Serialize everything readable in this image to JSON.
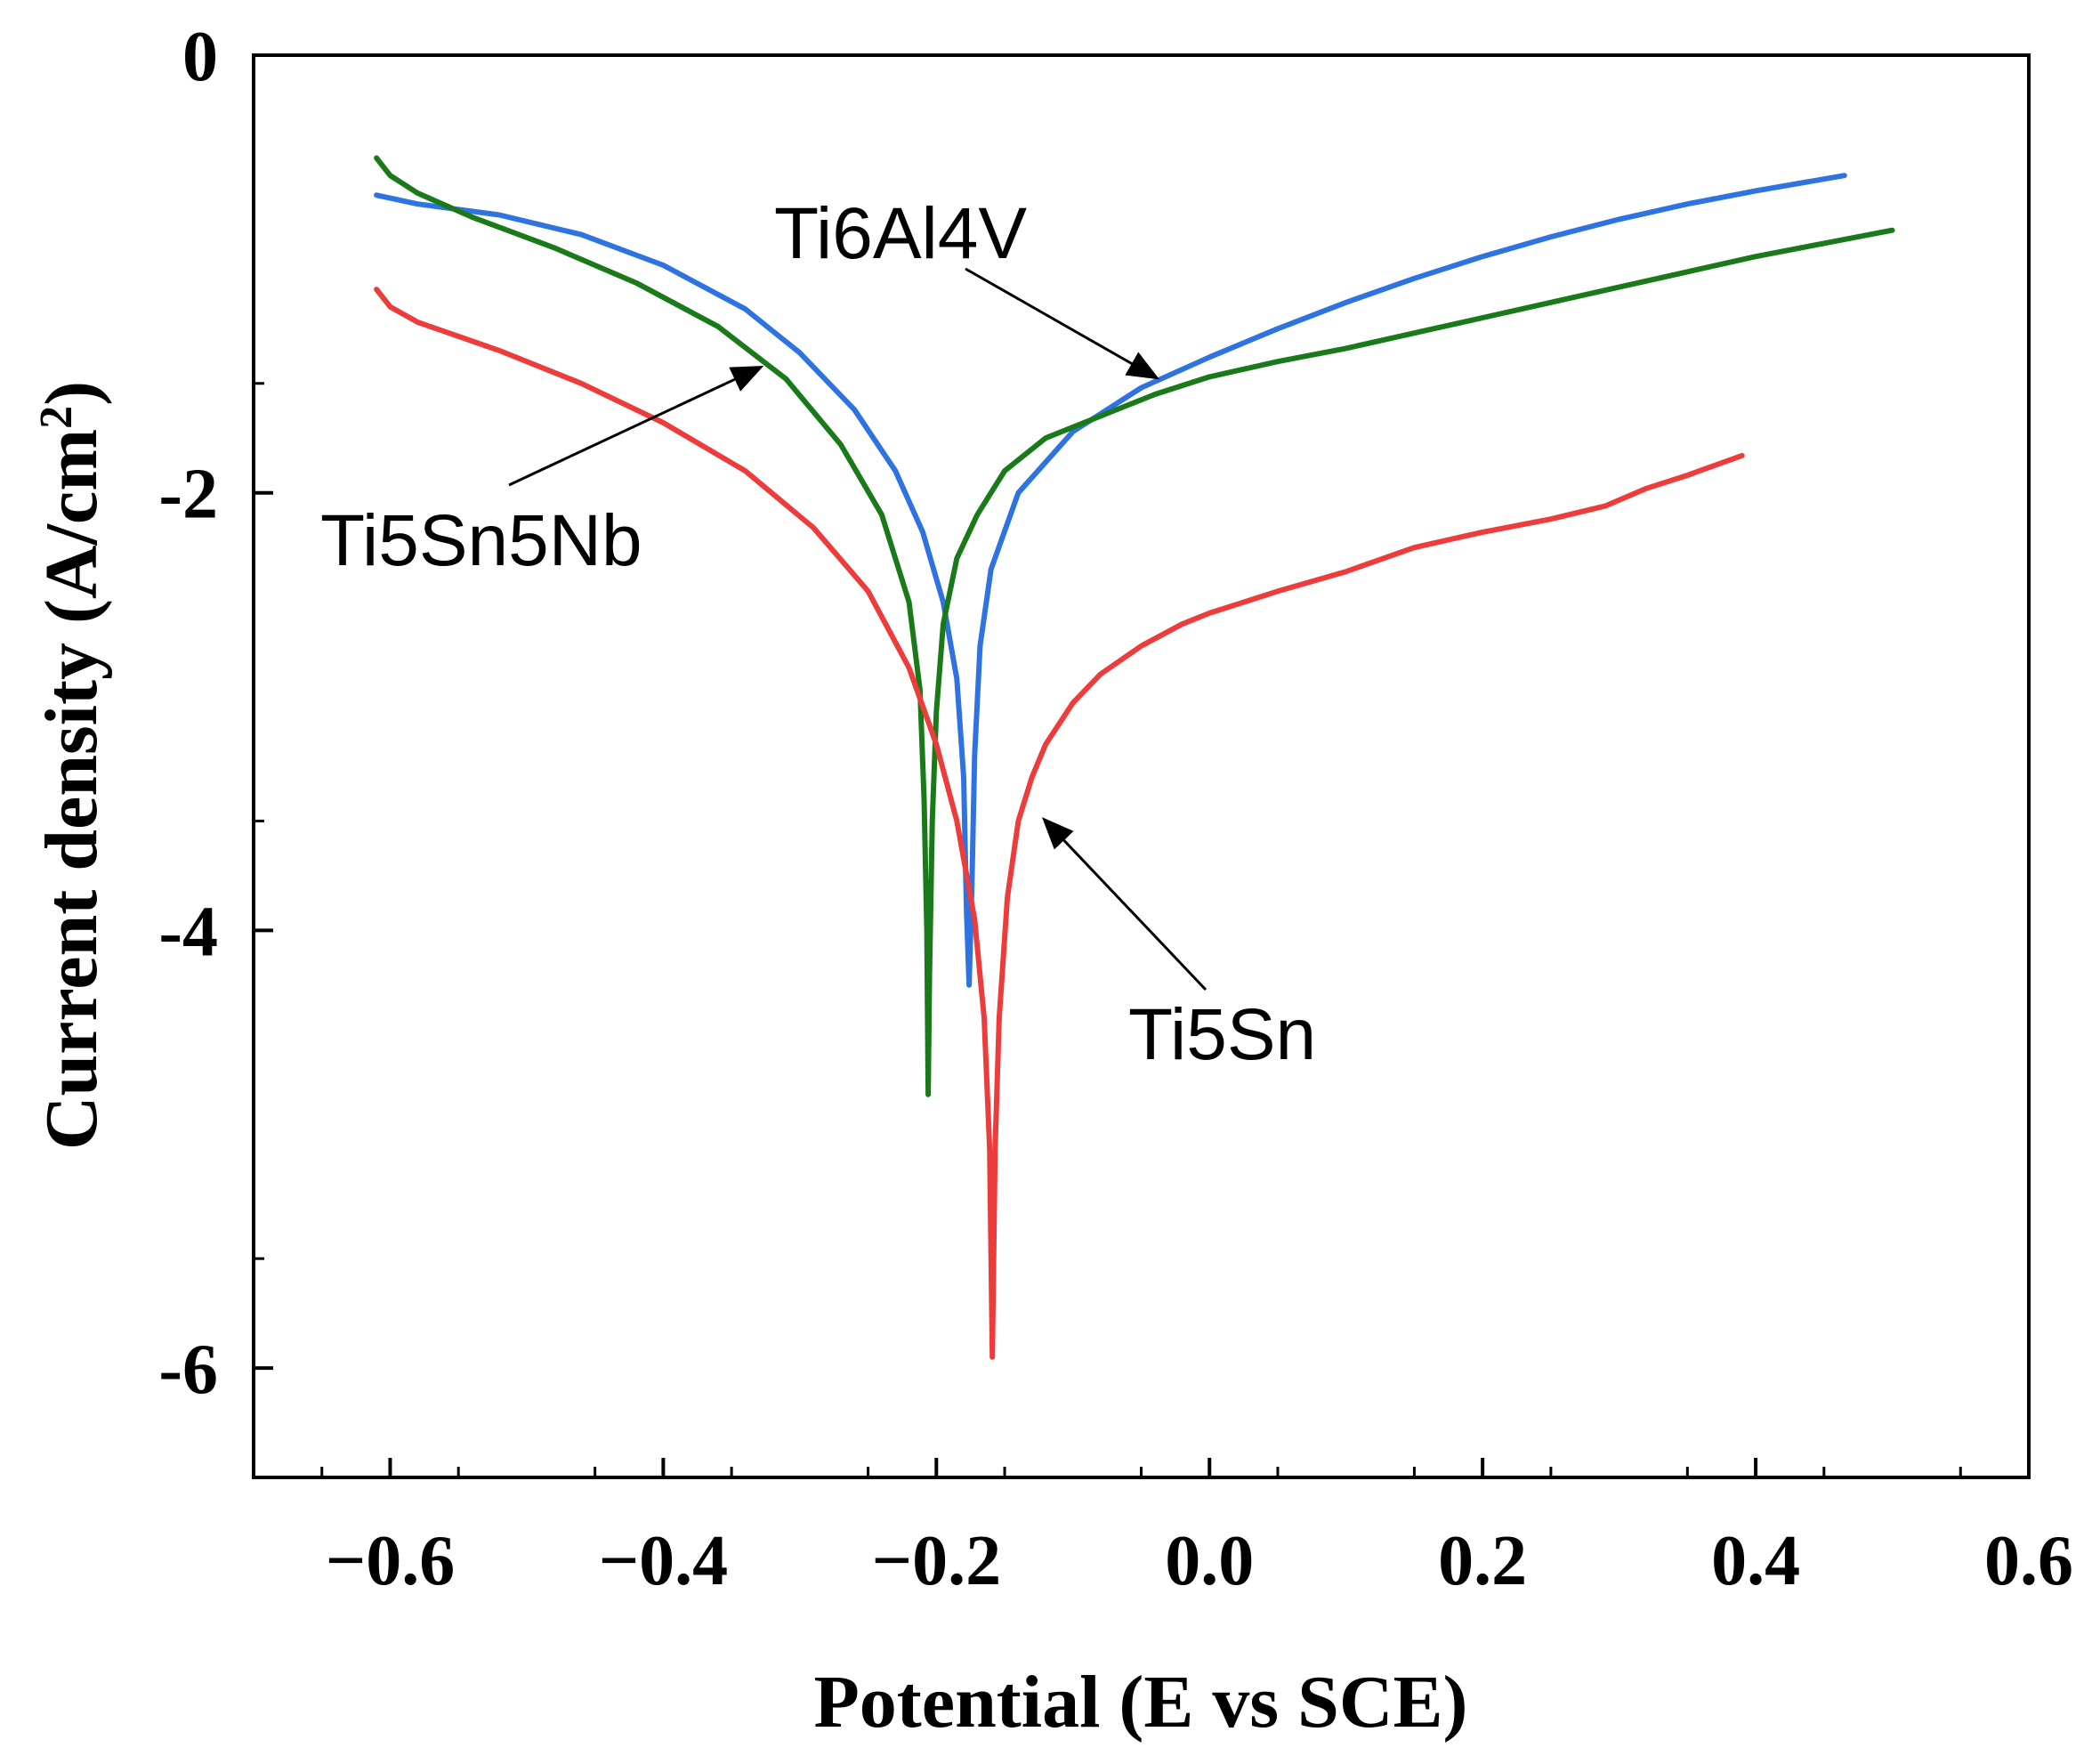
{
  "chart_data": {
    "type": "line",
    "title": "",
    "xlabel": "Potential (E vs SCE)",
    "ylabel_main": "Current density (A/cm",
    "ylabel_sup": "2",
    "ylabel_close": ")",
    "xlim": [
      -0.7,
      0.6
    ],
    "ylim": [
      -6.5,
      0
    ],
    "xticks": [
      -0.6,
      -0.4,
      -0.2,
      0.0,
      0.2,
      0.4,
      0.6
    ],
    "xtick_labels": [
      "−0.6",
      "−0.4",
      "−0.2",
      "0.0",
      "0.2",
      "0.4",
      "0.6"
    ],
    "yticks": [
      0,
      -2,
      -4,
      -6
    ],
    "ytick_labels": [
      "0",
      "-2",
      "-4",
      "-6"
    ],
    "grid": false,
    "series": [
      {
        "name": "Ti6Al4V",
        "color": "#2f73e0",
        "points": [
          [
            -0.61,
            -0.64
          ],
          [
            -0.58,
            -0.68
          ],
          [
            -0.52,
            -0.73
          ],
          [
            -0.46,
            -0.82
          ],
          [
            -0.4,
            -0.96
          ],
          [
            -0.34,
            -1.16
          ],
          [
            -0.3,
            -1.36
          ],
          [
            -0.26,
            -1.62
          ],
          [
            -0.23,
            -1.9
          ],
          [
            -0.21,
            -2.18
          ],
          [
            -0.195,
            -2.5
          ],
          [
            -0.185,
            -2.85
          ],
          [
            -0.18,
            -3.3
          ],
          [
            -0.178,
            -3.9
          ],
          [
            -0.176,
            -4.25
          ],
          [
            -0.174,
            -3.8
          ],
          [
            -0.172,
            -3.2
          ],
          [
            -0.168,
            -2.7
          ],
          [
            -0.16,
            -2.35
          ],
          [
            -0.14,
            -2.0
          ],
          [
            -0.1,
            -1.72
          ],
          [
            -0.05,
            -1.52
          ],
          [
            0.0,
            -1.38
          ],
          [
            0.05,
            -1.25
          ],
          [
            0.1,
            -1.13
          ],
          [
            0.15,
            -1.02
          ],
          [
            0.2,
            -0.92
          ],
          [
            0.25,
            -0.83
          ],
          [
            0.3,
            -0.75
          ],
          [
            0.35,
            -0.68
          ],
          [
            0.4,
            -0.62
          ],
          [
            0.465,
            -0.55
          ]
        ]
      },
      {
        "name": "Ti5Sn5Nb",
        "color": "#1a7a1a",
        "points": [
          [
            -0.61,
            -0.47
          ],
          [
            -0.6,
            -0.55
          ],
          [
            -0.58,
            -0.63
          ],
          [
            -0.54,
            -0.74
          ],
          [
            -0.48,
            -0.88
          ],
          [
            -0.42,
            -1.04
          ],
          [
            -0.36,
            -1.24
          ],
          [
            -0.31,
            -1.48
          ],
          [
            -0.27,
            -1.78
          ],
          [
            -0.24,
            -2.1
          ],
          [
            -0.22,
            -2.5
          ],
          [
            -0.212,
            -2.9
          ],
          [
            -0.209,
            -3.4
          ],
          [
            -0.207,
            -4.0
          ],
          [
            -0.206,
            -4.75
          ],
          [
            -0.205,
            -4.2
          ],
          [
            -0.203,
            -3.5
          ],
          [
            -0.2,
            -3.0
          ],
          [
            -0.195,
            -2.6
          ],
          [
            -0.185,
            -2.3
          ],
          [
            -0.17,
            -2.1
          ],
          [
            -0.15,
            -1.9
          ],
          [
            -0.12,
            -1.75
          ],
          [
            -0.08,
            -1.65
          ],
          [
            -0.04,
            -1.55
          ],
          [
            0.0,
            -1.47
          ],
          [
            0.05,
            -1.4
          ],
          [
            0.1,
            -1.34
          ],
          [
            0.15,
            -1.27
          ],
          [
            0.2,
            -1.2
          ],
          [
            0.25,
            -1.13
          ],
          [
            0.3,
            -1.06
          ],
          [
            0.35,
            -0.99
          ],
          [
            0.4,
            -0.92
          ],
          [
            0.45,
            -0.86
          ],
          [
            0.5,
            -0.8
          ]
        ]
      },
      {
        "name": "Ti5Sn",
        "color": "#ec3c3c",
        "points": [
          [
            -0.61,
            -1.07
          ],
          [
            -0.6,
            -1.15
          ],
          [
            -0.58,
            -1.22
          ],
          [
            -0.52,
            -1.35
          ],
          [
            -0.46,
            -1.5
          ],
          [
            -0.4,
            -1.68
          ],
          [
            -0.34,
            -1.9
          ],
          [
            -0.29,
            -2.16
          ],
          [
            -0.25,
            -2.45
          ],
          [
            -0.22,
            -2.8
          ],
          [
            -0.2,
            -3.15
          ],
          [
            -0.185,
            -3.5
          ],
          [
            -0.172,
            -3.95
          ],
          [
            -0.165,
            -4.4
          ],
          [
            -0.161,
            -5.0
          ],
          [
            -0.159,
            -5.95
          ],
          [
            -0.157,
            -5.0
          ],
          [
            -0.154,
            -4.4
          ],
          [
            -0.148,
            -3.85
          ],
          [
            -0.14,
            -3.5
          ],
          [
            -0.13,
            -3.3
          ],
          [
            -0.12,
            -3.15
          ],
          [
            -0.1,
            -2.96
          ],
          [
            -0.08,
            -2.83
          ],
          [
            -0.05,
            -2.7
          ],
          [
            -0.02,
            -2.6
          ],
          [
            0.0,
            -2.55
          ],
          [
            0.05,
            -2.45
          ],
          [
            0.1,
            -2.36
          ],
          [
            0.15,
            -2.25
          ],
          [
            0.2,
            -2.18
          ],
          [
            0.25,
            -2.12
          ],
          [
            0.29,
            -2.06
          ],
          [
            0.32,
            -1.98
          ],
          [
            0.35,
            -1.92
          ],
          [
            0.39,
            -1.83
          ]
        ]
      }
    ],
    "annotations": [
      {
        "text": "Ti6Al4V",
        "series": "Ti6Al4V",
        "arrow_to": [
          -0.04,
          -1.47
        ]
      },
      {
        "text": "Ti5Sn5Nb",
        "series": "Ti5Sn5Nb",
        "arrow_to": [
          -0.33,
          -1.43
        ]
      },
      {
        "text": "Ti5Sn",
        "series": "Ti5Sn",
        "arrow_to": [
          -0.12,
          -3.5
        ]
      }
    ]
  }
}
